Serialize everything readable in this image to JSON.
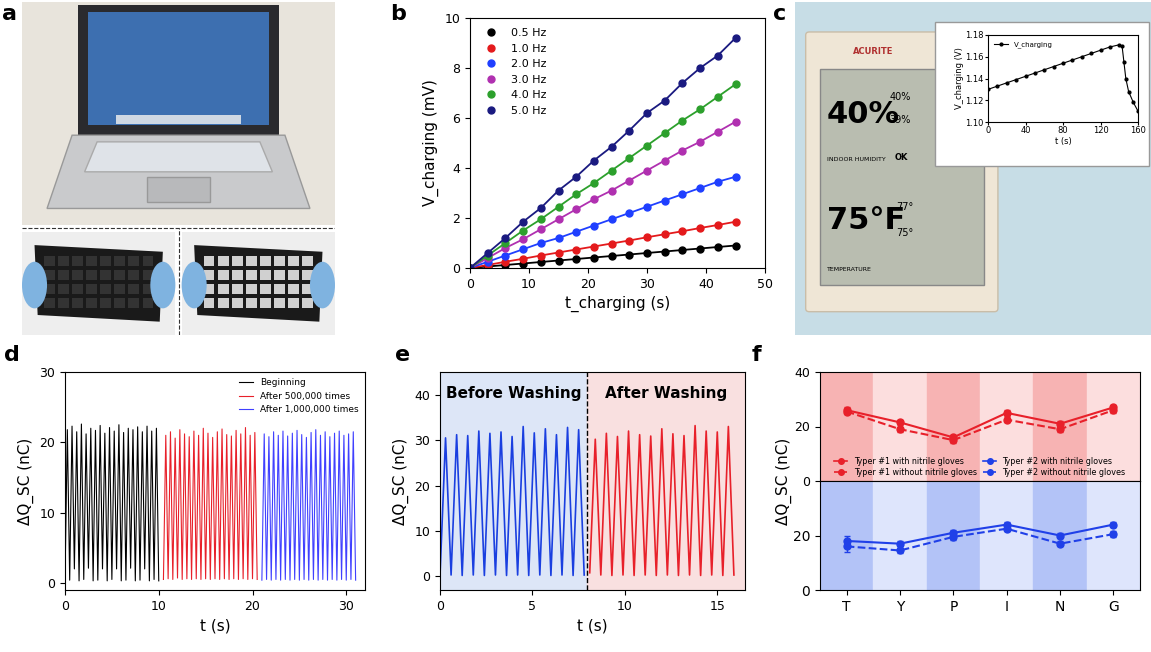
{
  "chart_data": [
    {
      "panel": "b",
      "type": "line",
      "xlabel": "t_charging (s)",
      "ylabel": "V_charging (mV)",
      "x": [
        0,
        3,
        6,
        9,
        12,
        15,
        18,
        21,
        24,
        27,
        30,
        33,
        36,
        39,
        42,
        45
      ],
      "xlim": [
        0,
        50
      ],
      "xticks": [
        0,
        10,
        20,
        30,
        40,
        50
      ],
      "ylim": [
        0,
        10
      ],
      "yticks": [
        0,
        2,
        4,
        6,
        8,
        10
      ],
      "grid": false,
      "legend": "upper left",
      "series": [
        {
          "name": "0.5 Hz",
          "color": "#000000",
          "marker": "circle",
          "line_style": "solid",
          "values": [
            0,
            0.06,
            0.12,
            0.18,
            0.24,
            0.3,
            0.36,
            0.42,
            0.48,
            0.54,
            0.6,
            0.66,
            0.72,
            0.78,
            0.84,
            0.9
          ]
        },
        {
          "name": "1.0 Hz",
          "color": "#e41a1c",
          "marker": "circle",
          "line_style": "solid",
          "values": [
            0,
            0.12,
            0.25,
            0.37,
            0.5,
            0.62,
            0.74,
            0.86,
            0.98,
            1.1,
            1.23,
            1.35,
            1.47,
            1.6,
            1.72,
            1.85
          ]
        },
        {
          "name": "2.0 Hz",
          "color": "#1f3fff",
          "marker": "circle",
          "line_style": "solid",
          "values": [
            0,
            0.25,
            0.5,
            0.75,
            1.0,
            1.2,
            1.45,
            1.7,
            1.95,
            2.2,
            2.45,
            2.7,
            2.95,
            3.2,
            3.45,
            3.65
          ]
        },
        {
          "name": "3.0 Hz",
          "color": "#b030b0",
          "marker": "circle",
          "line_style": "solid",
          "values": [
            0,
            0.4,
            0.8,
            1.15,
            1.55,
            1.95,
            2.35,
            2.75,
            3.1,
            3.5,
            3.9,
            4.3,
            4.7,
            5.05,
            5.45,
            5.85
          ]
        },
        {
          "name": "4.0 Hz",
          "color": "#2ca02c",
          "marker": "circle",
          "line_style": "solid",
          "values": [
            0,
            0.5,
            1.0,
            1.5,
            1.95,
            2.45,
            2.95,
            3.4,
            3.9,
            4.4,
            4.9,
            5.4,
            5.9,
            6.35,
            6.85,
            7.35
          ]
        },
        {
          "name": "5.0 Hz",
          "color": "#1a1a80",
          "marker": "circle",
          "line_style": "solid",
          "values": [
            0,
            0.6,
            1.2,
            1.85,
            2.4,
            3.1,
            3.65,
            4.3,
            4.85,
            5.5,
            6.2,
            6.7,
            7.4,
            8.0,
            8.5,
            9.2
          ]
        }
      ]
    },
    {
      "type": "line",
      "xlabel": "t (s)",
      "ylabel": "V_charging (V)",
      "x": [
        0,
        10,
        20,
        30,
        40,
        50,
        60,
        70,
        80,
        90,
        100,
        110,
        120,
        130,
        140,
        143,
        145,
        147,
        150,
        155,
        160
      ],
      "xlim": [
        0,
        160
      ],
      "xticks": [
        0,
        40,
        80,
        120,
        160
      ],
      "ylim": [
        1.1,
        1.18
      ],
      "yticks": [
        {
          "value": 1.1,
          "label": "1.10"
        },
        1.12,
        1.14,
        1.16,
        1.18
      ],
      "grid": false,
      "legend": "upper left",
      "series": [
        {
          "name": "V_charging",
          "color": "#000000",
          "marker": "circle",
          "line_style": "solid",
          "values": [
            1.13,
            1.133,
            1.136,
            1.139,
            1.142,
            1.145,
            1.148,
            1.151,
            1.154,
            1.157,
            1.16,
            1.163,
            1.166,
            1.169,
            1.171,
            1.17,
            1.155,
            1.14,
            1.128,
            1.118,
            1.11
          ]
        }
      ]
    },
    {
      "panel": "d",
      "type": "line",
      "xlabel": "t (s)",
      "ylabel": "ΔQ_SC (nC)",
      "xlim": [
        0,
        32
      ],
      "xticks": [
        0,
        10,
        20,
        30
      ],
      "ylim": [
        -1,
        30
      ],
      "yticks": [
        0,
        10,
        20,
        30
      ],
      "grid": false,
      "legend": "upper right",
      "series": [
        {
          "name": "Beginning",
          "color": "#000000",
          "marker": "none",
          "line_style": "solid",
          "x": [
            0,
            0.25,
            0.5,
            0.75,
            1,
            1.25,
            1.5,
            1.75,
            2,
            2.25,
            2.5,
            2.75,
            3,
            3.25,
            3.5,
            3.75,
            4,
            4.25,
            4.5,
            4.75,
            5,
            5.25,
            5.5,
            5.75,
            6,
            6.25,
            6.5,
            6.75,
            7,
            7.25,
            7.5,
            7.75,
            8,
            8.25,
            8.5,
            8.75,
            9,
            9.25,
            9.5,
            9.75,
            10
          ],
          "values": [
            0.3,
            21.8,
            0.4,
            22.3,
            2.0,
            21.5,
            0.3,
            22.6,
            0.5,
            21.2,
            2.1,
            22.0,
            0.3,
            21.7,
            0.4,
            22.4,
            2.0,
            21.3,
            0.3,
            22.1,
            0.5,
            21.6,
            2.0,
            22.5,
            0.3,
            21.4,
            0.4,
            22.0,
            2.1,
            21.8,
            0.3,
            22.2,
            0.4,
            21.5,
            2.0,
            22.3,
            0.3,
            21.6,
            0.5,
            22.0,
            0.3
          ]
        },
        {
          "name": "After 500,000 times",
          "color": "#e8202a",
          "marker": "none",
          "line_style": "solid",
          "x": [
            10.5,
            10.75,
            11,
            11.25,
            11.5,
            11.75,
            12,
            12.25,
            12.5,
            12.75,
            13,
            13.25,
            13.5,
            13.75,
            14,
            14.25,
            14.5,
            14.75,
            15,
            15.25,
            15.5,
            15.75,
            16,
            16.25,
            16.5,
            16.75,
            17,
            17.25,
            17.5,
            17.75,
            18,
            18.25,
            18.5,
            18.75,
            19,
            19.25,
            19.5,
            19.75,
            20,
            20.25,
            20.5
          ],
          "values": [
            0.5,
            21.0,
            0.6,
            21.5,
            0.5,
            20.6,
            0.7,
            21.8,
            0.5,
            21.2,
            0.6,
            20.8,
            0.5,
            21.6,
            0.6,
            21.0,
            0.5,
            22.0,
            0.6,
            21.3,
            0.5,
            20.7,
            0.6,
            21.5,
            0.5,
            21.9,
            0.6,
            21.1,
            0.5,
            20.9,
            0.6,
            21.7,
            0.5,
            21.2,
            0.6,
            22.1,
            0.5,
            21.0,
            0.6,
            21.4,
            0.5
          ]
        },
        {
          "name": "After 1,000,000 times",
          "color": "#4040ff",
          "marker": "none",
          "line_style": "solid",
          "x": [
            21,
            21.25,
            21.5,
            21.75,
            22,
            22.25,
            22.5,
            22.75,
            23,
            23.25,
            23.5,
            23.75,
            24,
            24.25,
            24.5,
            24.75,
            25,
            25.25,
            25.5,
            25.75,
            26,
            26.25,
            26.5,
            26.75,
            27,
            27.25,
            27.5,
            27.75,
            28,
            28.25,
            28.5,
            28.75,
            29,
            29.25,
            29.5,
            29.75,
            30,
            30.25,
            30.5,
            30.75,
            31
          ],
          "values": [
            0.4,
            21.2,
            0.5,
            20.8,
            0.4,
            21.5,
            0.5,
            21.0,
            0.4,
            21.6,
            0.5,
            20.9,
            0.4,
            21.3,
            0.5,
            21.7,
            0.4,
            21.1,
            0.5,
            20.7,
            0.4,
            21.4,
            0.5,
            21.8,
            0.4,
            21.0,
            0.5,
            21.5,
            0.4,
            20.8,
            0.5,
            21.3,
            0.4,
            21.6,
            0.5,
            21.0,
            0.4,
            21.2,
            0.5,
            21.5,
            0.4
          ]
        }
      ]
    },
    {
      "panel": "e",
      "type": "line",
      "xlabel": "t (s)",
      "ylabel": "ΔQ_SC (nC)",
      "xlim": [
        0,
        16.5
      ],
      "xticks": [
        0,
        5,
        10,
        15
      ],
      "ylim": [
        -3,
        45
      ],
      "yticks": [
        0,
        10,
        20,
        30,
        40
      ],
      "grid": false,
      "divider": 7.95,
      "annotations": [
        "Before Washing",
        "After Washing"
      ],
      "series": [
        {
          "color": "#1a3fe0",
          "marker": "none",
          "line_style": "solid",
          "x": [
            0,
            0.3,
            0.6,
            0.9,
            1.2,
            1.5,
            1.8,
            2.1,
            2.4,
            2.7,
            3,
            3.3,
            3.6,
            3.9,
            4.2,
            4.5,
            4.8,
            5.1,
            5.4,
            5.7,
            6,
            6.3,
            6.6,
            6.9,
            7.2,
            7.5,
            7.8
          ],
          "values": [
            0.2,
            30.5,
            0.3,
            31.2,
            0.2,
            31.0,
            0.3,
            32.0,
            0.2,
            31.5,
            0.3,
            31.8,
            0.2,
            30.8,
            0.3,
            33.0,
            0.2,
            31.6,
            0.3,
            32.5,
            0.2,
            31.2,
            0.3,
            32.8,
            0.2,
            32.3,
            0.3
          ]
        },
        {
          "color": "#e8202a",
          "marker": "none",
          "line_style": "solid",
          "x": [
            8.1,
            8.4,
            8.7,
            9,
            9.3,
            9.6,
            9.9,
            10.2,
            10.5,
            10.8,
            11.1,
            11.4,
            11.7,
            12,
            12.3,
            12.6,
            12.9,
            13.2,
            13.5,
            13.8,
            14.1,
            14.4,
            14.7,
            15,
            15.3,
            15.6,
            15.9
          ],
          "values": [
            0.8,
            30.2,
            0.3,
            31.5,
            0.2,
            30.8,
            0.3,
            32.0,
            0.2,
            31.2,
            0.3,
            30.9,
            0.2,
            32.5,
            0.3,
            31.4,
            0.2,
            31.0,
            0.3,
            33.2,
            0.2,
            32.0,
            0.3,
            31.8,
            0.2,
            33.0,
            0.3
          ]
        }
      ]
    },
    {
      "panel": "f",
      "type": "line",
      "ylabel": "ΔQ_SC (nC)",
      "categories": [
        "T",
        "Y",
        "P",
        "I",
        "N",
        "G"
      ],
      "grid": false,
      "legend": "lower center",
      "subplots": [
        {
          "ylim": [
            0,
            40
          ],
          "yticks": [
            0,
            20,
            40
          ],
          "series": [
            {
              "name": "Typer #1 with nitrile gloves",
              "color": "#e8202a",
              "marker": "circle",
              "line_style": "solid",
              "values": [
                26,
                21.5,
                16,
                25,
                21,
                27
              ],
              "error": [
                1,
                1,
                1,
                1,
                1,
                1
              ]
            },
            {
              "name": "Typer #1 without nitrile gloves",
              "color": "#e8202a",
              "marker": "circle",
              "line_style": "dashed",
              "values": [
                25.5,
                19,
                15,
                22.5,
                19,
                26
              ],
              "error": [
                1,
                1,
                1,
                1,
                1,
                1
              ]
            }
          ]
        },
        {
          "ylim": [
            0,
            40
          ],
          "yticks": [
            0,
            20
          ],
          "series": [
            {
              "name": "Typer #2 with nitrile gloves",
              "color": "#2040e8",
              "marker": "circle",
              "line_style": "solid",
              "values": [
                18,
                17,
                21,
                24,
                20,
                24
              ],
              "error": [
                2,
                1,
                1,
                1,
                1,
                1
              ]
            },
            {
              "name": "Typer #2 without nitrile gloves",
              "color": "#2040e8",
              "marker": "circle",
              "line_style": "dashed",
              "values": [
                16,
                14.5,
                19.5,
                22.5,
                17,
                20.5
              ],
              "error": [
                2,
                1,
                1,
                1,
                1,
                1
              ]
            }
          ]
        }
      ]
    }
  ],
  "photo_a": {
    "panel": "a"
  },
  "photo_c": {
    "panel": "c",
    "brand": "ACURITE",
    "humidity": "40%",
    "humidity_high": "40%",
    "humidity_low": "39%",
    "humidity_label": "INDOOR HUMIDITY",
    "status": "OK",
    "temperature": "75°F",
    "temperature_high": "77°",
    "temperature_low": "75°",
    "temperature_label": "TEMPERATURE"
  }
}
